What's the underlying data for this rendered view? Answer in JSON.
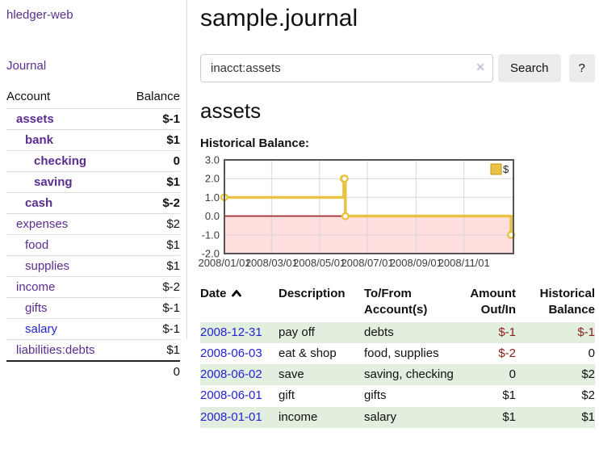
{
  "sidebar": {
    "brand": "hledger-web",
    "journal_label": "Journal",
    "accounts_table": {
      "headers": {
        "account": "Account",
        "balance": "Balance"
      },
      "rows": [
        {
          "name": "assets",
          "balance": "$-1",
          "indent": 1,
          "bold": true,
          "balance_style": "negative-dark"
        },
        {
          "name": "bank",
          "balance": "$1",
          "indent": 2,
          "bold": true,
          "balance_style": "normal"
        },
        {
          "name": "checking",
          "balance": "0",
          "indent": 3,
          "bold": true,
          "balance_style": "normal"
        },
        {
          "name": "saving",
          "balance": "$1",
          "indent": 3,
          "bold": true,
          "balance_style": "normal"
        },
        {
          "name": "cash",
          "balance": "$-2",
          "indent": 2,
          "bold": true,
          "balance_style": "negative-dark"
        },
        {
          "name": "expenses",
          "balance": "$2",
          "indent": 1,
          "bold": false,
          "balance_style": "normal"
        },
        {
          "name": "food",
          "balance": "$1",
          "indent": 2,
          "bold": false,
          "balance_style": "normal"
        },
        {
          "name": "supplies",
          "balance": "$1",
          "indent": 2,
          "bold": false,
          "balance_style": "normal"
        },
        {
          "name": "income",
          "balance": "$-2",
          "indent": 1,
          "bold": false,
          "balance_style": "negative-soft"
        },
        {
          "name": "gifts",
          "balance": "$-1",
          "indent": 2,
          "bold": false,
          "balance_style": "negative-soft"
        },
        {
          "name": "salary",
          "balance": "$-1",
          "indent": 2,
          "bold": false,
          "balance_style": "negative-soft",
          "link_style": "unvisited"
        },
        {
          "name": "liabilities:debts",
          "balance": "$1",
          "indent": 1,
          "bold": false,
          "balance_style": "normal"
        }
      ],
      "total": "0"
    }
  },
  "main": {
    "title": "sample.journal",
    "search": {
      "value": "inacct:assets",
      "clear_icon": "✕",
      "search_button_label": "Search",
      "help_button_label": "?"
    },
    "account_heading": "assets",
    "chart_label": "Historical Balance:"
  },
  "chart_data": {
    "type": "line",
    "title": "Historical Balance:",
    "step": true,
    "series": [
      {
        "name": "$",
        "color": "#e8c240",
        "points": [
          [
            "2008-01-01",
            1
          ],
          [
            "2008-06-01",
            2
          ],
          [
            "2008-06-02",
            2
          ],
          [
            "2008-06-03",
            0
          ],
          [
            "2008-12-31",
            -1
          ]
        ]
      }
    ],
    "x_domain": [
      "2008-01-01",
      "2009-01-03"
    ],
    "x_ticks": [
      {
        "date": "2008-01-01",
        "label": "2008/01/01"
      },
      {
        "date": "2008-03-01",
        "label": "2008/03/01"
      },
      {
        "date": "2008-05-01",
        "label": "2008/05/01"
      },
      {
        "date": "2008-07-01",
        "label": "2008/07/01"
      },
      {
        "date": "2008-09-01",
        "label": "2008/09/01"
      },
      {
        "date": "2008-11-01",
        "label": "2008/11/01"
      }
    ],
    "y_ticks": [
      {
        "value": 3,
        "label": "3.0"
      },
      {
        "value": 2,
        "label": "2.0"
      },
      {
        "value": 1,
        "label": "1.0"
      },
      {
        "value": 0,
        "label": "0.0"
      },
      {
        "value": -1,
        "label": "-1.0"
      },
      {
        "value": -2,
        "label": "-2.0"
      }
    ],
    "ylim": [
      -2,
      3
    ],
    "grid": true,
    "legend": {
      "label": "$",
      "position": "top-right"
    },
    "negative_region_color": "#ffdede",
    "zero_line_color": "#9d1f1f",
    "grid_color": "#d8d8d8",
    "border_color": "#545454"
  },
  "register_table": {
    "headers": {
      "date": "Date",
      "description": "Description",
      "accounts": "To/From Account(s)",
      "amount": "Amount Out/In",
      "balance": "Historical Balance"
    },
    "rows": [
      {
        "date": "2008-12-31",
        "description": "pay off",
        "accounts": "debts",
        "amount": "$-1",
        "balance": "$-1",
        "shaded": true
      },
      {
        "date": "2008-06-03",
        "description": "eat & shop",
        "accounts": "food, supplies",
        "amount": "$-2",
        "balance": "0",
        "shaded": false
      },
      {
        "date": "2008-06-02",
        "description": "save",
        "accounts": "saving, checking",
        "amount": "0",
        "balance": "$2",
        "shaded": true
      },
      {
        "date": "2008-06-01",
        "description": "gift",
        "accounts": "gifts",
        "amount": "$1",
        "balance": "$2",
        "shaded": false
      },
      {
        "date": "2008-01-01",
        "description": "income",
        "accounts": "salary",
        "amount": "$1",
        "balance": "$1",
        "shaded": true
      }
    ]
  },
  "colors": {
    "link_purple": "#5b2d90",
    "link_blue": "#2424d0",
    "negative_dark": "#8b1f1a",
    "negative_soft": "#bb7472",
    "row_green": "#e2eede",
    "chart_line": "#e8c240",
    "chart_negative_fill": "#ffdede",
    "chart_zero_line": "#9d1f1f",
    "button_gray": "#ececec"
  }
}
